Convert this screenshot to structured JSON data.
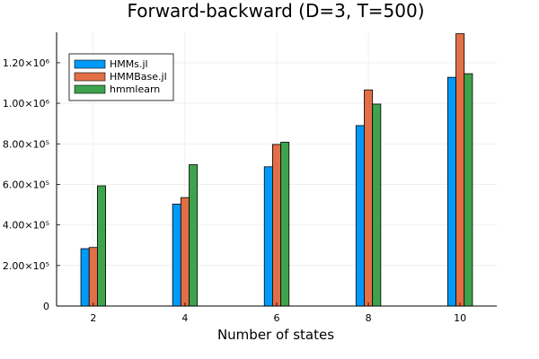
{
  "chart_data": {
    "type": "bar",
    "title": "Forward-backward (D=3, T=500)",
    "xlabel": "Number of states",
    "ylabel": "",
    "categories": [
      "2",
      "4",
      "6",
      "8",
      "10"
    ],
    "series": [
      {
        "name": "HMMs.jl",
        "color": "#009af9",
        "values": [
          283000,
          503000,
          687000,
          890000,
          1128000
        ]
      },
      {
        "name": "HMMBase.jl",
        "color": "#e26f46",
        "values": [
          289000,
          535000,
          797000,
          1066000,
          1343000
        ]
      },
      {
        "name": "hmmlearn",
        "color": "#3da44d",
        "values": [
          593000,
          697000,
          808000,
          996000,
          1146000
        ]
      }
    ],
    "ylim": [
      0,
      1350000
    ],
    "xlim": [
      1.2,
      10.8
    ],
    "yticks": [
      {
        "value": 0,
        "label": "0"
      },
      {
        "value": 200000,
        "label": "2.00×10⁵"
      },
      {
        "value": 400000,
        "label": "4.00×10⁵"
      },
      {
        "value": 600000,
        "label": "6.00×10⁵"
      },
      {
        "value": 800000,
        "label": "8.00×10⁵"
      },
      {
        "value": 1000000,
        "label": "1.00×10⁶"
      },
      {
        "value": 1200000,
        "label": "1.20×10⁶"
      }
    ],
    "grid": true,
    "legend_position": "top-left"
  }
}
